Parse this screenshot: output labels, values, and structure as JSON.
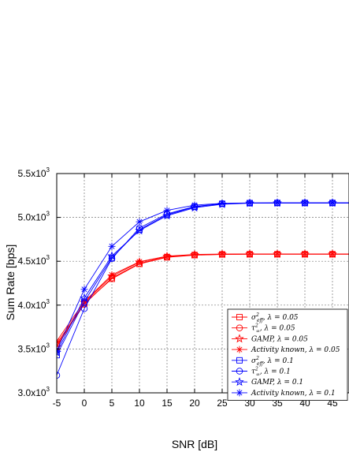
{
  "chart_data": {
    "type": "line",
    "title": "",
    "xlabel": "SNR [dB]",
    "ylabel": "Sum Rate [bps]",
    "xlim": [
      -5,
      48
    ],
    "ylim": [
      3000,
      5500
    ],
    "x_ticks": [
      -5,
      0,
      5,
      10,
      15,
      20,
      25,
      30,
      35,
      40,
      45
    ],
    "x_tick_labels": [
      "-5",
      "0",
      "5",
      "10",
      "15",
      "20",
      "25",
      "30",
      "35",
      "40",
      "45"
    ],
    "y_ticks": [
      3000,
      3500,
      4000,
      4500,
      5000,
      5500
    ],
    "y_tick_labels": [
      "3.0x10",
      "3.5x10",
      "4.0x10",
      "4.5x10",
      "5.0x10",
      "5.5x10"
    ],
    "y_tick_exponent": "3",
    "grid": true,
    "legend_position": "bottom-right",
    "x": [
      -5,
      0,
      5,
      10,
      15,
      20,
      25,
      30,
      35,
      40,
      45,
      50
    ],
    "series": [
      {
        "name": "σ²eff, λ = 0.05",
        "color": "#ff0000",
        "marker": "square",
        "values": [
          3560,
          4020,
          4300,
          4470,
          4545,
          4570,
          4578,
          4580,
          4580,
          4580,
          4580,
          4580
        ]
      },
      {
        "name": "τ²∞, λ = 0.05",
        "color": "#ff0000",
        "marker": "circle",
        "values": [
          3540,
          4010,
          4310,
          4475,
          4548,
          4572,
          4579,
          4581,
          4581,
          4581,
          4581,
          4581
        ]
      },
      {
        "name": "GAMP, λ = 0.05",
        "color": "#ff0000",
        "marker": "star5",
        "values": [
          3520,
          4030,
          4330,
          4490,
          4555,
          4575,
          4580,
          4582,
          4582,
          4582,
          4582,
          4582
        ]
      },
      {
        "name": "Activity known, λ = 0.05",
        "color": "#ff0000",
        "marker": "asterisk",
        "values": [
          3590,
          4040,
          4345,
          4495,
          4558,
          4578,
          4582,
          4583,
          4583,
          4583,
          4583,
          4583
        ]
      },
      {
        "name": "σ²eff, λ = 0.1",
        "color": "#0000ff",
        "marker": "square",
        "values": [
          3430,
          4040,
          4540,
          4860,
          5030,
          5120,
          5155,
          5163,
          5165,
          5165,
          5165,
          5165
        ]
      },
      {
        "name": "τ²∞, λ = 0.1",
        "color": "#0000ff",
        "marker": "circle",
        "values": [
          3200,
          3960,
          4530,
          4880,
          5040,
          5125,
          5157,
          5164,
          5165,
          5165,
          5165,
          5165
        ]
      },
      {
        "name": "GAMP, λ = 0.1",
        "color": "#0000ff",
        "marker": "star5",
        "values": [
          3460,
          4080,
          4560,
          4850,
          5020,
          5110,
          5150,
          5162,
          5164,
          5165,
          5165,
          5165
        ]
      },
      {
        "name": "Activity known, λ = 0.1",
        "color": "#0000ff",
        "marker": "asterisk",
        "values": [
          3480,
          4180,
          4670,
          4950,
          5080,
          5140,
          5160,
          5165,
          5166,
          5166,
          5166,
          5166
        ]
      }
    ],
    "legend": [
      {
        "main": "σ",
        "sup": "2",
        "sub": "eff",
        "tail": ", λ = 0.05"
      },
      {
        "main": "τ",
        "sup": "2",
        "sub": "∞",
        "tail": ", λ = 0.05"
      },
      {
        "main": "GAMP",
        "sup": "",
        "sub": "",
        "tail": ", λ = 0.05"
      },
      {
        "main": "Activity known",
        "sup": "",
        "sub": "",
        "tail": ", λ = 0.05"
      },
      {
        "main": "σ",
        "sup": "2",
        "sub": "eff",
        "tail": ", λ = 0.1"
      },
      {
        "main": "τ",
        "sup": "2",
        "sub": "∞",
        "tail": ", λ = 0.1"
      },
      {
        "main": "GAMP",
        "sup": "",
        "sub": "",
        "tail": ", λ = 0.1"
      },
      {
        "main": "Activity known",
        "sup": "",
        "sub": "",
        "tail": ", λ = 0.1"
      }
    ]
  }
}
